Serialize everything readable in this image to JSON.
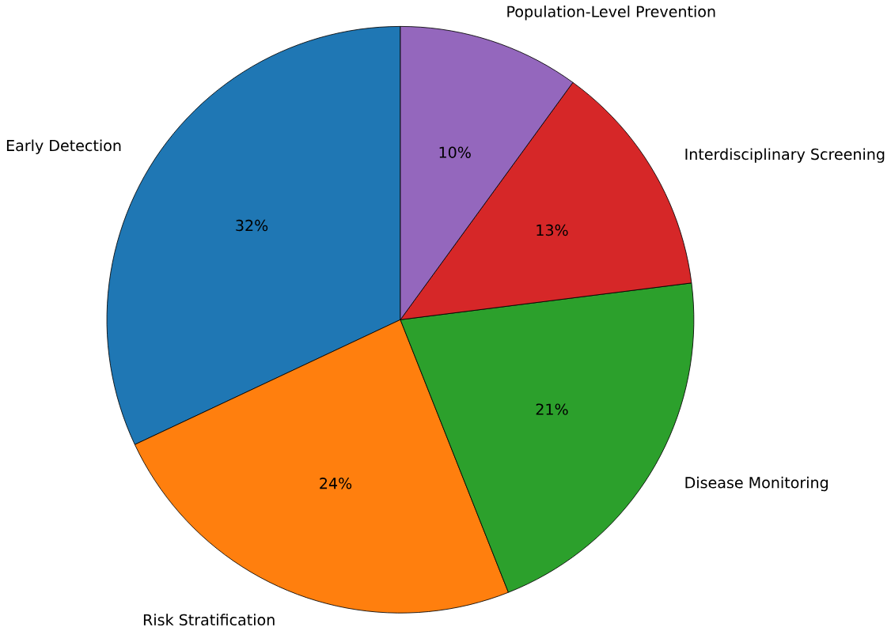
{
  "chart_data": {
    "type": "pie",
    "categories": [
      "Early Detection",
      "Risk Stratification",
      "Disease Monitoring",
      "Interdisciplinary Screening",
      "Population-Level Prevention"
    ],
    "values": [
      32,
      24,
      21,
      13,
      10
    ],
    "colors": [
      "#1f77b4",
      "#ff7f0e",
      "#2ca02c",
      "#d62728",
      "#9467bd"
    ],
    "value_labels": [
      "32%",
      "24%",
      "21%",
      "13%",
      "10%"
    ]
  }
}
